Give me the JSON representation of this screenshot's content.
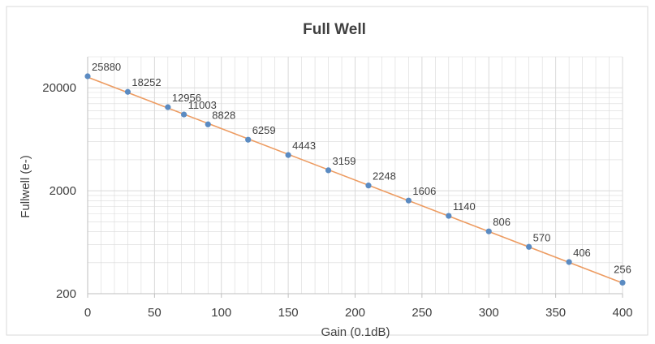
{
  "chart_data": {
    "type": "scatter",
    "title": "Full Well",
    "xlabel": "Gain (0.1dB)",
    "ylabel": "Fullwell (e-)",
    "x_scale": "linear",
    "y_scale": "log",
    "xlim": [
      0,
      400
    ],
    "ylim": [
      200,
      40000
    ],
    "x_ticks": [
      0,
      50,
      100,
      150,
      200,
      250,
      300,
      350,
      400
    ],
    "y_ticks": [
      200,
      2000,
      20000
    ],
    "grid": true,
    "legend": "none",
    "series": [
      {
        "x": [
          0,
          30,
          60,
          72,
          90,
          120,
          150,
          180,
          210,
          240,
          270,
          300,
          330,
          360,
          400
        ],
        "values": [
          25880,
          18252,
          12956,
          11003,
          8828,
          6259,
          4443,
          3159,
          2248,
          1606,
          1140,
          806,
          570,
          406,
          256
        ],
        "labels": [
          "25880",
          "18252",
          "12956",
          "11003",
          "8828",
          "6259",
          "4443",
          "3159",
          "2248",
          "1606",
          "1140",
          "806",
          "570",
          "406",
          "256"
        ],
        "color": "#5b8bc2",
        "trendline": "exponential",
        "trendline_color": "#ed9c62"
      }
    ],
    "colors": {
      "grid": "#d9d9d9",
      "axis": "#bfbfbf",
      "text": "#404040",
      "frame": "#d9d9d9"
    }
  }
}
